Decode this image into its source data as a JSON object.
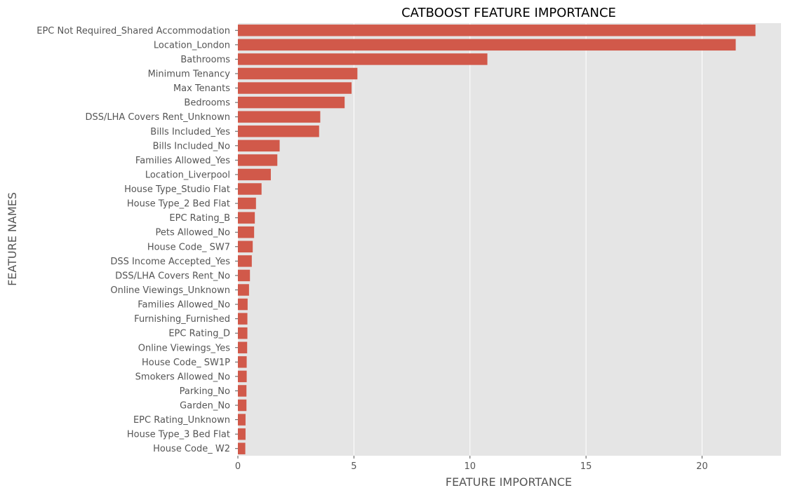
{
  "chart_data": {
    "type": "bar",
    "orientation": "horizontal",
    "title": "CATBOOST FEATURE IMPORTANCE",
    "xlabel": "FEATURE IMPORTANCE",
    "ylabel": "FEATURE NAMES",
    "xlim": [
      0,
      23.4
    ],
    "xticks": [
      0,
      5,
      10,
      15,
      20
    ],
    "grid": true,
    "bar_color": "#D1594A",
    "background_color": "#E5E5E5",
    "categories": [
      "EPC Not Required_Shared Accommodation",
      "Location_London",
      "Bathrooms",
      "Minimum Tenancy",
      "Max Tenants",
      "Bedrooms",
      "DSS/LHA Covers Rent_Unknown",
      "Bills Included_Yes",
      "Bills Included_No",
      "Families Allowed_Yes",
      "Location_Liverpool",
      "House Type_Studio Flat",
      "House Type_2 Bed Flat",
      "EPC Rating_B",
      "Pets Allowed_No",
      "House Code_ SW7",
      "DSS Income Accepted_Yes",
      "DSS/LHA Covers Rent_No",
      "Online Viewings_Unknown",
      "Families Allowed_No",
      "Furnishing_Furnished",
      "EPC Rating_D",
      "Online Viewings_Yes",
      "House Code_ SW1P",
      "Smokers Allowed_No",
      "Parking_No",
      "Garden_No",
      "EPC Rating_Unknown",
      "House Type_3 Bed Flat",
      "House Code_ W2"
    ],
    "values": [
      22.3,
      21.45,
      10.75,
      5.15,
      4.9,
      4.6,
      3.55,
      3.5,
      1.8,
      1.7,
      1.42,
      1.02,
      0.78,
      0.73,
      0.7,
      0.64,
      0.6,
      0.52,
      0.48,
      0.42,
      0.41,
      0.41,
      0.4,
      0.38,
      0.38,
      0.37,
      0.37,
      0.33,
      0.33,
      0.32
    ]
  }
}
